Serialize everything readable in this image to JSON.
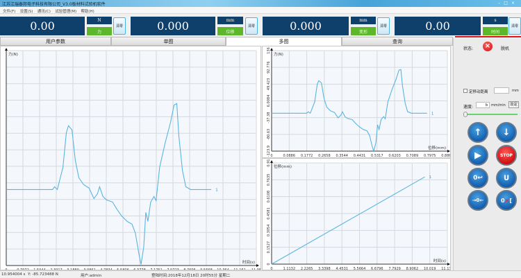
{
  "window": {
    "title": "江苏江瑞泰邦电子科技有限公司_V3.0板材料试验机软件",
    "controls": [
      "–",
      "□",
      "×"
    ]
  },
  "menu": [
    "文件(F)",
    "设置(S)",
    "通讯(C)",
    "试验管理(M)",
    "帮助(H)"
  ],
  "readouts": [
    {
      "value": "0.00",
      "unit": "N",
      "label": "力",
      "clear": "清零"
    },
    {
      "value": "0.000",
      "unit": "mm",
      "label": "位移",
      "clear": "清零"
    },
    {
      "value": "0.000",
      "unit": "mm",
      "label": "变形",
      "clear": "清零"
    },
    {
      "value": "0.00",
      "unit": "s",
      "label": "时间",
      "clear": "清零"
    }
  ],
  "tabs": [
    {
      "label": "用户参数",
      "selected": false
    },
    {
      "label": "单图",
      "selected": false
    },
    {
      "label": "多图",
      "selected": true
    },
    {
      "label": "查询",
      "selected": false
    }
  ],
  "control_panel": {
    "status_label": "状态:",
    "status_value": "脱机",
    "status_icon": "disconnected-icon",
    "fixed_distance_label": "定移动距离",
    "fixed_distance_checked": false,
    "fixed_distance_value": "",
    "fixed_distance_unit": "mm",
    "speed_label": "速度:",
    "speed_value": "5",
    "speed_unit": "mm/min",
    "set_button": "设定",
    "speed_slider_fraction": 0.0,
    "buttons": [
      "up-arrow",
      "down-arrow",
      "start",
      "stop",
      "return-to-zero",
      "clamp-release",
      "zero-center",
      "cancel-clamp"
    ],
    "stop_label": "STOP"
  },
  "status_bar": {
    "x_readout": "10.954004 s",
    "y_readout": "Y: -85.723488 N",
    "user": "用户:admin",
    "login_time": "登陆时间:2018年12月18日 20时55分 星期二"
  },
  "chart_data": [
    {
      "id": "single-force-time",
      "type": "line",
      "xlabel": "时间(s)",
      "ylabel": "力(N)",
      "xlim": [
        0,
        11.95
      ],
      "ylim": [
        -147,
        163
      ],
      "xticks": [
        "0",
        "0.7972",
        "1.5944",
        "2.3917",
        "3.1889",
        "3.9861",
        "4.7834",
        "5.5806",
        "6.3778",
        "7.1751",
        "7.9723",
        "8.7695",
        "9.5668",
        "10.364",
        "11.161",
        "11.95"
      ],
      "yticks": [],
      "grid": true,
      "series": [
        {
          "name": "1",
          "x": [
            0,
            2.21,
            2.31,
            2.44,
            2.71,
            2.87,
            2.97,
            3.14,
            3.3,
            3.47,
            3.7,
            3.96,
            4.19,
            4.36,
            4.46,
            4.62,
            4.79,
            5.08,
            5.28,
            5.51,
            5.78,
            6.01,
            6.17,
            6.34,
            6.44,
            6.57,
            6.67,
            6.77,
            6.9,
            7.06,
            7.16,
            7.33,
            7.59,
            7.85,
            8.02,
            8.15,
            8.25,
            8.42,
            8.58,
            8.81,
            9.8
          ],
          "y": [
            -37.4,
            -37.4,
            -33.4,
            -37.4,
            -5.4,
            44.6,
            54.6,
            48.6,
            4.6,
            -20.4,
            -30.4,
            -35.4,
            -50.4,
            -43.4,
            -33.4,
            -47.4,
            -52.4,
            -55.4,
            -65.4,
            -75.4,
            -83.4,
            -87.4,
            -100.4,
            -130.4,
            -145.4,
            -120.4,
            -70.4,
            -83.4,
            -55.4,
            -47.4,
            -53.4,
            -5.4,
            29.6,
            59.6,
            84.6,
            86.6,
            39.6,
            -10.4,
            -33.4,
            -37.4,
            -37.4
          ]
        }
      ]
    },
    {
      "id": "multi-force-displacement",
      "type": "line",
      "xlabel": "位移(mm)",
      "ylabel": "力(N)",
      "xlim": [
        0,
        0.8862
      ],
      "ylim": [
        -145,
        140
      ],
      "xticks": [
        "0",
        "0.0886",
        "0.1772",
        "0.2658",
        "0.3544",
        "0.4431",
        "0.5317",
        "0.6203",
        "0.7089",
        "0.7975",
        "0.8862"
      ],
      "yticks": [
        "136",
        "92.776",
        "49.423",
        "6.0084",
        "-37.38",
        "-80.63",
        "-123.9"
      ],
      "grid": true,
      "series": [
        {
          "name": "1",
          "x": [
            0,
            0.177,
            0.185,
            0.195,
            0.217,
            0.23,
            0.238,
            0.251,
            0.264,
            0.278,
            0.296,
            0.317,
            0.335,
            0.349,
            0.357,
            0.37,
            0.383,
            0.406,
            0.422,
            0.441,
            0.462,
            0.481,
            0.494,
            0.507,
            0.515,
            0.526,
            0.534,
            0.542,
            0.552,
            0.565,
            0.573,
            0.586,
            0.607,
            0.628,
            0.642,
            0.652,
            0.66,
            0.674,
            0.686,
            0.705,
            0.784
          ],
          "y": [
            -37.4,
            -37.4,
            -33.4,
            -37.4,
            -5.4,
            44.6,
            54.6,
            48.6,
            4.6,
            -20.4,
            -30.4,
            -35.4,
            -50.4,
            -43.4,
            -33.4,
            -47.4,
            -52.4,
            -55.4,
            -65.4,
            -75.4,
            -83.4,
            -87.4,
            -100.4,
            -130.4,
            -145.4,
            -120.4,
            -70.4,
            -83.4,
            -55.4,
            -47.4,
            -53.4,
            -5.4,
            29.6,
            59.6,
            84.6,
            86.6,
            39.6,
            -10.4,
            -33.4,
            -37.4,
            -37.4
          ]
        }
      ]
    },
    {
      "id": "multi-displacement-time",
      "type": "line",
      "xlabel": "时间(s)",
      "ylabel": "位移(mm)",
      "xlim": [
        0,
        11.132
      ],
      "ylim": [
        0,
        0.91
      ],
      "xticks": [
        "0",
        "1.1132",
        "2.2265",
        "3.3398",
        "4.4531",
        "5.5664",
        "6.6796",
        "7.7929",
        "8.9062",
        "10.019",
        "11.132"
      ],
      "yticks": [
        "0",
        "0.1527",
        "0.3054",
        "0.4581",
        "0.6108",
        "0.7635",
        "0.91"
      ],
      "grid": true,
      "series": [
        {
          "name": "1",
          "x": [
            0,
            9.7
          ],
          "y": [
            0,
            0.784
          ]
        }
      ]
    }
  ],
  "colors": {
    "display_bg": "#0f3f6b",
    "label_green": "#5cb82a",
    "curve": "#5ab4e0",
    "stop_red": "#d01010"
  }
}
